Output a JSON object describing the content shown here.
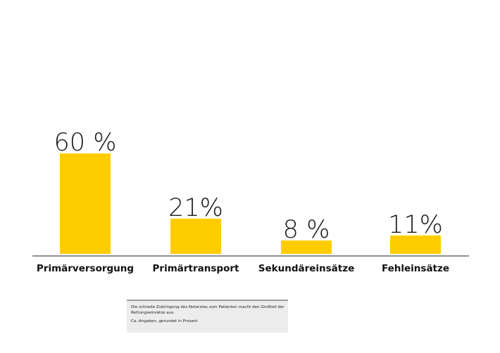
{
  "colors": {
    "bar": "#ffcc00",
    "axis": "#222222",
    "text": "#1a1a1a"
  },
  "chart_data": {
    "type": "bar",
    "categories": [
      "Primärversorgung",
      "Primärtransport",
      "Sekundäreinsätze",
      "Fehleinsätze"
    ],
    "values": [
      60,
      21,
      8,
      11
    ],
    "value_labels": [
      "60 %",
      "21%",
      "8 %",
      "11%"
    ],
    "unit": "%",
    "ylim": [
      0,
      100
    ],
    "grid": false,
    "legend": "none",
    "title": "",
    "xlabel": "",
    "ylabel": ""
  },
  "note": {
    "text": "Die schnelle Zubringung des Notarztes zum Patienten macht den Großteil der Rettungseinsätze aus.",
    "source": "Ca.-Angaben, gerundet in Prozent"
  }
}
